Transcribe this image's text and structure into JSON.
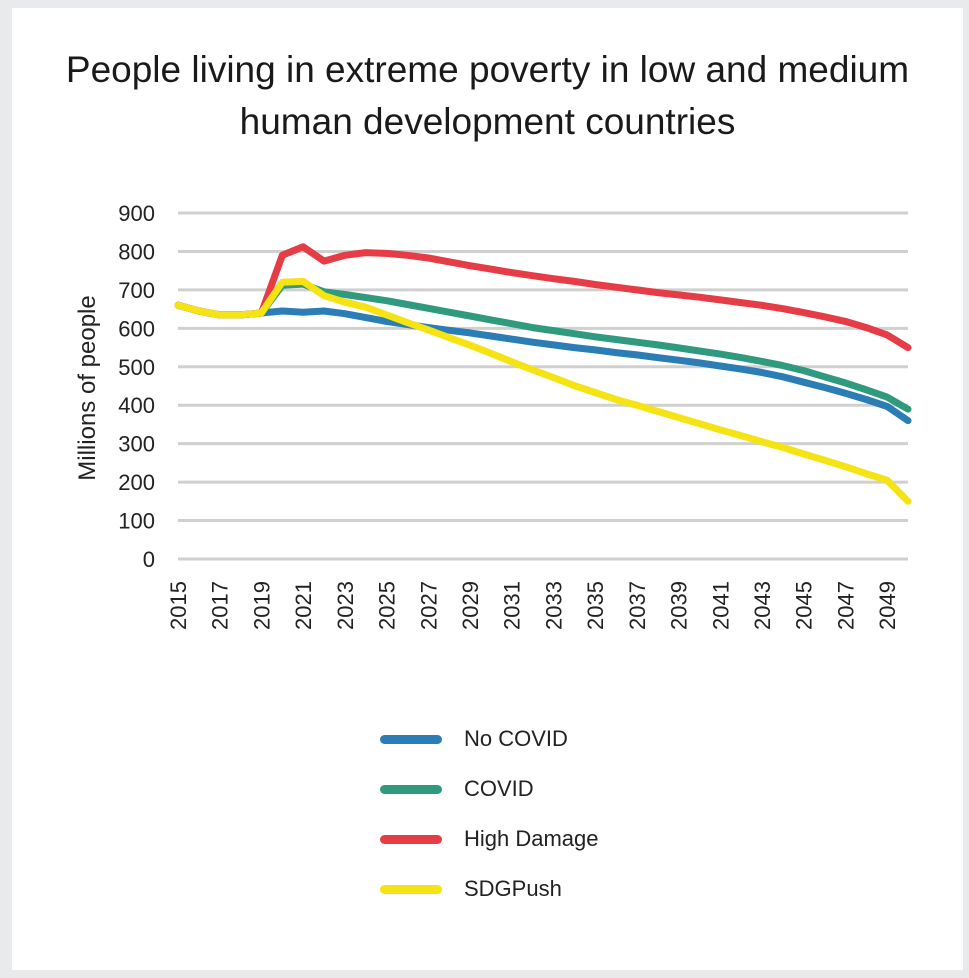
{
  "chart_data": {
    "type": "line",
    "title": "People living in extreme poverty in low and medium human development countries",
    "xlabel": "",
    "ylabel": "Millions of people",
    "ylim": [
      0,
      900
    ],
    "yticks": [
      0,
      100,
      200,
      300,
      400,
      500,
      600,
      700,
      800,
      900
    ],
    "xlim": [
      2015,
      2050
    ],
    "xtick_labels": [
      "2015",
      "2017",
      "2019",
      "2021",
      "2023",
      "2025",
      "2027",
      "2029",
      "2031",
      "2033",
      "2035",
      "2037",
      "2039",
      "2041",
      "2043",
      "2045",
      "2047",
      "2049"
    ],
    "grid": true,
    "legend_position": "bottom",
    "x": [
      2015,
      2016,
      2017,
      2018,
      2019,
      2020,
      2021,
      2022,
      2023,
      2024,
      2025,
      2026,
      2027,
      2028,
      2029,
      2030,
      2031,
      2032,
      2033,
      2034,
      2035,
      2036,
      2037,
      2038,
      2039,
      2040,
      2041,
      2042,
      2043,
      2044,
      2045,
      2046,
      2047,
      2048,
      2049,
      2050
    ],
    "series": [
      {
        "name": "No COVID",
        "color": "#2a7db5",
        "values": [
          660,
          645,
          635,
          635,
          640,
          645,
          642,
          645,
          638,
          628,
          618,
          610,
          602,
          595,
          588,
          580,
          572,
          564,
          557,
          550,
          544,
          537,
          531,
          524,
          517,
          510,
          502,
          494,
          485,
          474,
          460,
          446,
          431,
          415,
          397,
          360
        ]
      },
      {
        "name": "COVID",
        "color": "#2f9a7e",
        "values": [
          660,
          645,
          635,
          635,
          640,
          712,
          715,
          695,
          688,
          680,
          672,
          662,
          652,
          642,
          632,
          622,
          612,
          602,
          594,
          586,
          578,
          571,
          564,
          557,
          549,
          541,
          533,
          524,
          514,
          503,
          490,
          474,
          458,
          440,
          421,
          390
        ]
      },
      {
        "name": "High Damage",
        "color": "#e63c46",
        "values": [
          660,
          645,
          635,
          635,
          640,
          790,
          812,
          775,
          790,
          797,
          795,
          790,
          783,
          773,
          763,
          754,
          745,
          737,
          729,
          722,
          714,
          707,
          700,
          693,
          687,
          681,
          674,
          667,
          660,
          651,
          641,
          630,
          618,
          602,
          583,
          550
        ]
      },
      {
        "name": "SDGPush",
        "color": "#f5e313",
        "values": [
          660,
          645,
          635,
          635,
          640,
          720,
          722,
          685,
          668,
          655,
          635,
          615,
          596,
          576,
          556,
          535,
          513,
          492,
          472,
          451,
          433,
          415,
          400,
          384,
          368,
          352,
          336,
          321,
          305,
          290,
          273,
          257,
          240,
          222,
          205,
          150
        ]
      }
    ]
  }
}
